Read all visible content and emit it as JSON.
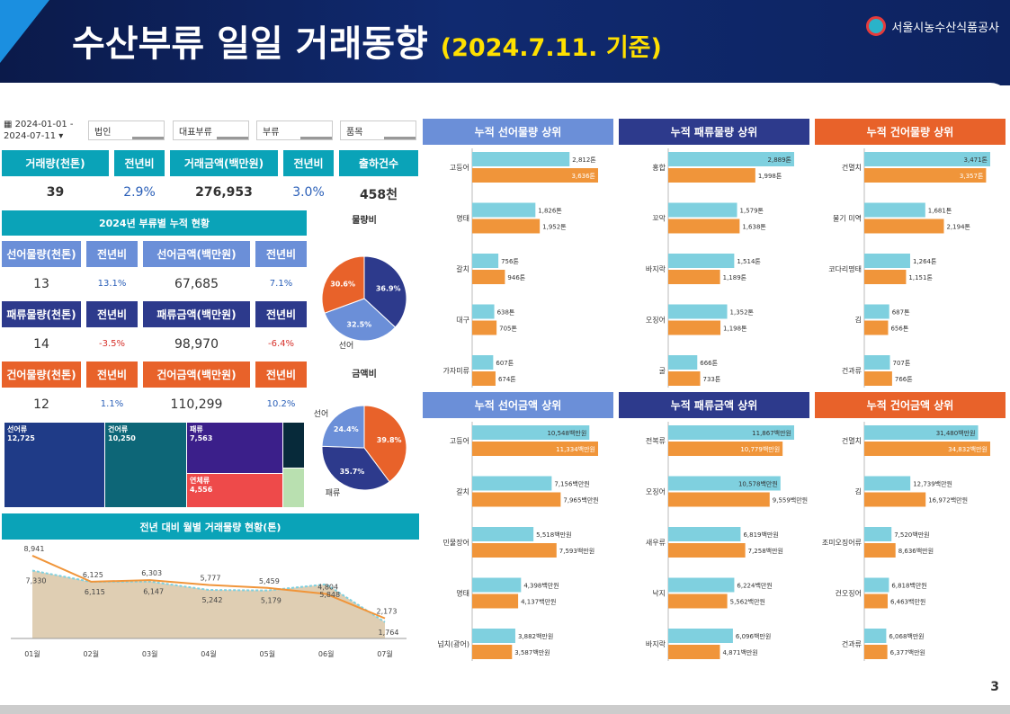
{
  "header": {
    "title": "수산부류 일일 거래동향",
    "date": "(2024.7.11. 기준)",
    "logo": "서울시농수산식품공사"
  },
  "filters": {
    "date_range": "2024-01-01 - 2024-07-11",
    "f1": "법인",
    "f2": "대표부류",
    "f3": "부류",
    "f4": "품목"
  },
  "kpi": {
    "labels": [
      "거래량(천톤)",
      "전년비",
      "거래금액(백만원)",
      "전년비",
      "출하건수"
    ],
    "values": [
      "39",
      "2.9%",
      "276,953",
      "3.0%",
      "458천"
    ]
  },
  "section_title": "2024년 부류별 누적 현황",
  "seon": {
    "labels": [
      "선어물량(천톤)",
      "전년비",
      "선어금액(백만원)",
      "전년비"
    ],
    "values": [
      "13",
      "13.1%",
      "67,685",
      "7.1%"
    ]
  },
  "pae": {
    "labels": [
      "패류물량(천톤)",
      "전년비",
      "패류금액(백만원)",
      "전년비"
    ],
    "values": [
      "14",
      "-3.5%",
      "98,970",
      "-6.4%"
    ]
  },
  "geon": {
    "labels": [
      "건어물량(천톤)",
      "전년비",
      "건어금액(백만원)",
      "전년비"
    ],
    "values": [
      "12",
      "1.1%",
      "110,299",
      "10.2%"
    ]
  },
  "colors": {
    "teal": "#0aa3b8",
    "blue": "#6b8fd8",
    "navy": "#2d3a8c",
    "orange": "#e8622a",
    "cyan": "#7fd0df",
    "amber": "#f0953a"
  },
  "page_number": "3",
  "chart_data": [
    {
      "type": "pie",
      "title": "물량비",
      "labels": [
        "선어",
        "패류",
        "건어"
      ],
      "values": [
        32.5,
        36.9,
        30.6
      ],
      "value_labels": [
        "32.5%",
        "36.9%",
        "30.6%"
      ],
      "colors": [
        "#6b8fd8",
        "#2d3a8c",
        "#e8622a"
      ]
    },
    {
      "type": "pie",
      "title": "금액비",
      "labels": [
        "선어",
        "패류",
        "건어"
      ],
      "values": [
        24.4,
        35.7,
        39.8
      ],
      "value_labels": [
        "24.4%",
        "35.7%",
        "39.8%"
      ],
      "colors": [
        "#6b8fd8",
        "#2d3a8c",
        "#e8622a"
      ]
    },
    {
      "type": "treemap",
      "items": [
        {
          "name": "선어류",
          "value": "12,725"
        },
        {
          "name": "건어류",
          "value": "10,250"
        },
        {
          "name": "패류",
          "value": "7,563"
        },
        {
          "name": "연체류",
          "value": "4,556"
        }
      ]
    },
    {
      "type": "line",
      "title": "전년 대비 월별 거래물량 현황(톤)",
      "categories": [
        "01월",
        "02월",
        "03월",
        "04월",
        "05월",
        "06월",
        "07월"
      ],
      "series": [
        {
          "values": [
            8941,
            6125,
            6303,
            5777,
            5459,
            4804,
            2173
          ],
          "value_labels": [
            "8,941",
            "6,125",
            "6,303",
            "5,777",
            "5,459",
            "4,804",
            "2,173"
          ]
        },
        {
          "values": [
            7330,
            6115,
            6147,
            5242,
            5179,
            5848,
            1764
          ],
          "value_labels": [
            "7,330",
            "6,115",
            "6,147",
            "5,242",
            "5,179",
            "5,848",
            "1,764"
          ]
        }
      ],
      "ylim": [
        0,
        10000
      ]
    },
    {
      "type": "bar",
      "title": "누적 선어물량 상위",
      "categories": [
        "고등어",
        "명태",
        "갈치",
        "대구",
        "가자미류"
      ],
      "series": [
        {
          "values": [
            2812,
            1826,
            756,
            638,
            607
          ],
          "value_labels": [
            "2,812톤",
            "1,826톤",
            "756톤",
            "638톤",
            "607톤"
          ]
        },
        {
          "values": [
            3636,
            1952,
            946,
            705,
            674
          ],
          "value_labels": [
            "3,636톤",
            "1,952톤",
            "946톤",
            "705톤",
            "674톤"
          ]
        }
      ]
    },
    {
      "type": "bar",
      "title": "누적 패류물량 상위",
      "categories": [
        "홍합",
        "꼬막",
        "바지락",
        "오징어",
        "굴"
      ],
      "series": [
        {
          "values": [
            2889,
            1579,
            1514,
            1352,
            666
          ],
          "value_labels": [
            "2,889톤",
            "1,579톤",
            "1,514톤",
            "1,352톤",
            "666톤"
          ]
        },
        {
          "values": [
            1998,
            1638,
            1189,
            1198,
            733
          ],
          "value_labels": [
            "1,998톤",
            "1,638톤",
            "1,189톤",
            "1,198톤",
            "733톤"
          ]
        }
      ]
    },
    {
      "type": "bar",
      "title": "누적 건어물량 상위",
      "categories": [
        "건멸치",
        "물기 미역",
        "코다리명태",
        "김",
        "건과류"
      ],
      "series": [
        {
          "values": [
            3471,
            1681,
            1264,
            687,
            707
          ],
          "value_labels": [
            "3,471톤",
            "1,681톤",
            "1,264톤",
            "687톤",
            "707톤"
          ]
        },
        {
          "values": [
            3357,
            2194,
            1151,
            656,
            766
          ],
          "value_labels": [
            "3,357톤",
            "2,194톤",
            "1,151톤",
            "656톤",
            "766톤"
          ]
        }
      ]
    },
    {
      "type": "bar",
      "title": "누적 선어금액 상위",
      "categories": [
        "고등어",
        "갈치",
        "민물장어",
        "명태",
        "넙치(광어)"
      ],
      "series": [
        {
          "values": [
            10548,
            7156,
            5518,
            4398,
            3882
          ],
          "value_labels": [
            "10,548백만원",
            "7,156백만원",
            "5,518백만원",
            "4,398백만원",
            "3,882백만원"
          ]
        },
        {
          "values": [
            11334,
            7965,
            7593,
            4137,
            3587
          ],
          "value_labels": [
            "11,334백만원",
            "7,965백만원",
            "7,593백만원",
            "4,137백만원",
            "3,587백만원"
          ]
        }
      ]
    },
    {
      "type": "bar",
      "title": "누적 패류금액 상위",
      "categories": [
        "전복류",
        "오징어",
        "새우류",
        "낙지",
        "바지락"
      ],
      "series": [
        {
          "values": [
            11867,
            10578,
            6819,
            6224,
            6096
          ],
          "value_labels": [
            "11,867백만원",
            "10,578백만원",
            "6,819백만원",
            "6,224백만원",
            "6,096백만원"
          ]
        },
        {
          "values": [
            10779,
            9559,
            7258,
            5562,
            4871
          ],
          "value_labels": [
            "10,779백만원",
            "9,559백만원",
            "7,258백만원",
            "5,562백만원",
            "4,871백만원"
          ]
        }
      ]
    },
    {
      "type": "bar",
      "title": "누적 건어금액 상위",
      "categories": [
        "건멸치",
        "김",
        "조미오징어류",
        "건오징어",
        "건과류"
      ],
      "series": [
        {
          "values": [
            31480,
            12739,
            7520,
            6818,
            6068
          ],
          "value_labels": [
            "31,480백만원",
            "12,739백만원",
            "7,520백만원",
            "6,818백만원",
            "6,068백만원"
          ]
        },
        {
          "values": [
            34832,
            16972,
            8636,
            6463,
            6377
          ],
          "value_labels": [
            "34,832백만원",
            "16,972백만원",
            "8,636백만원",
            "6,463백만원",
            "6,377백만원"
          ]
        }
      ]
    }
  ]
}
